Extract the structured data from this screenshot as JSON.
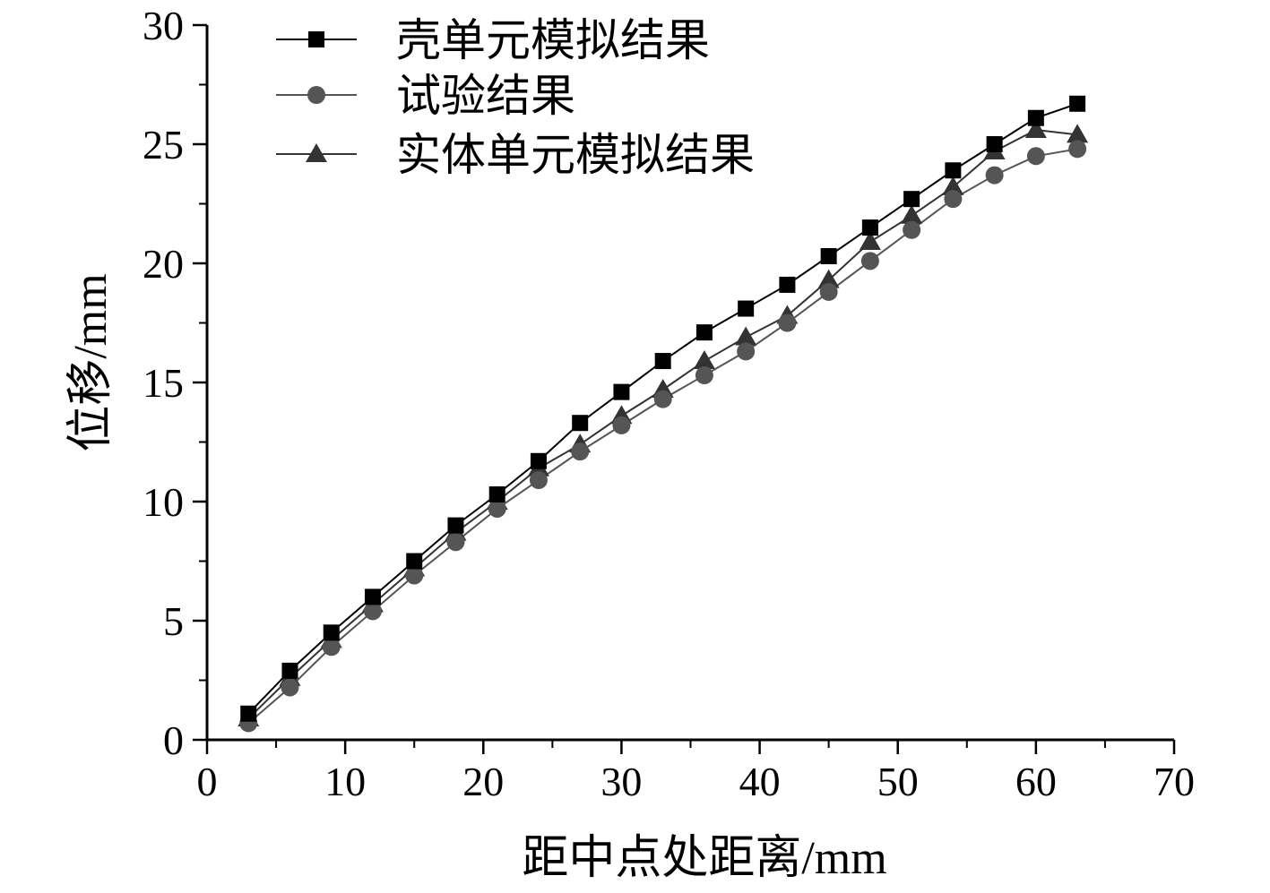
{
  "chart_data": {
    "type": "line",
    "xlabel": "距中点处距离/mm",
    "ylabel": "位移/mm",
    "xlim": [
      0,
      70
    ],
    "ylim": [
      0,
      30
    ],
    "x_ticks": [
      "0",
      "10",
      "20",
      "30",
      "40",
      "50",
      "60",
      "70"
    ],
    "y_ticks": [
      "0",
      "5",
      "10",
      "15",
      "20",
      "25",
      "30"
    ],
    "grid": false,
    "legend_position": "top-left",
    "x": [
      3,
      6,
      9,
      12,
      15,
      18,
      21,
      24,
      27,
      30,
      33,
      36,
      39,
      42,
      45,
      48,
      51,
      54,
      57,
      60,
      63
    ],
    "series": [
      {
        "name": "壳单元模拟结果",
        "marker": "square",
        "color": "#000000",
        "values": [
          1.1,
          2.9,
          4.5,
          6.0,
          7.5,
          9.0,
          10.3,
          11.7,
          13.3,
          14.6,
          15.9,
          17.1,
          18.1,
          19.1,
          20.3,
          21.5,
          22.7,
          23.9,
          25.0,
          26.1,
          26.7
        ]
      },
      {
        "name": "试验结果",
        "marker": "circle",
        "color": "#555555",
        "values": [
          0.7,
          2.2,
          3.9,
          5.4,
          6.9,
          8.3,
          9.7,
          10.9,
          12.1,
          13.2,
          14.3,
          15.3,
          16.3,
          17.5,
          18.8,
          20.1,
          21.4,
          22.7,
          23.7,
          24.5,
          24.8
        ]
      },
      {
        "name": "实体单元模拟结果",
        "marker": "triangle",
        "color": "#333333",
        "values": [
          0.9,
          2.6,
          4.2,
          5.7,
          7.2,
          8.7,
          10.0,
          11.4,
          12.4,
          13.6,
          14.7,
          15.9,
          16.9,
          17.8,
          19.3,
          20.9,
          22.0,
          23.2,
          24.7,
          25.6,
          25.4
        ]
      }
    ]
  }
}
